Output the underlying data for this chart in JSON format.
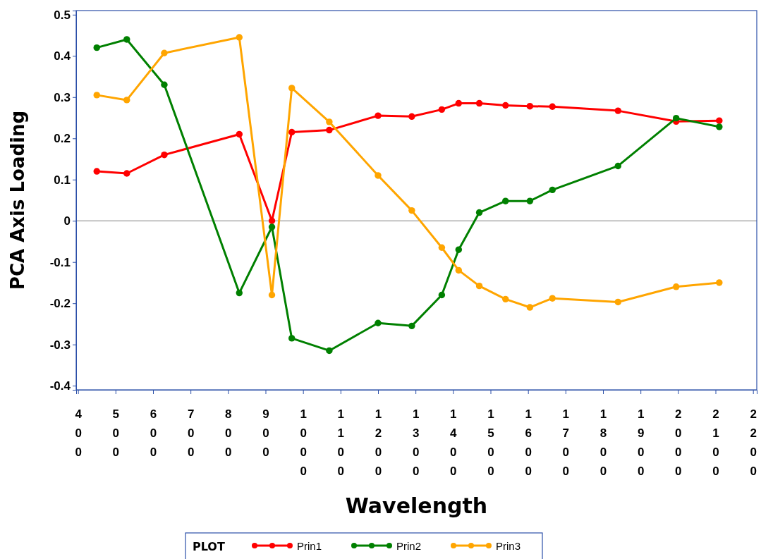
{
  "chart_data": {
    "type": "line",
    "xlabel": "Wavelength",
    "ylabel": "PCA Axis Loading",
    "legend_title": "PLOT",
    "legend": "bottom",
    "marker": "circle",
    "line_style": "solid",
    "grid": false,
    "x": [
      450,
      530,
      630,
      830,
      917,
      970,
      1070,
      1200,
      1290,
      1370,
      1415,
      1470,
      1540,
      1605,
      1665,
      1840,
      1995,
      2110
    ],
    "xlim": [
      395,
      2210
    ],
    "xticks": [
      400,
      500,
      600,
      700,
      800,
      900,
      1000,
      1100,
      1200,
      1300,
      1400,
      1500,
      1600,
      1700,
      1800,
      1900,
      2000,
      2100,
      2200
    ],
    "ylim": [
      -0.41,
      0.51
    ],
    "yticks": [
      -0.4,
      -0.3,
      -0.2,
      -0.1,
      0,
      0.1,
      0.2,
      0.3,
      0.4,
      0.5
    ],
    "ref_lines": [
      {
        "axis": "y",
        "value": 0,
        "color": "#808080"
      }
    ],
    "series": [
      {
        "name": "Prin1",
        "color": "#ff0000",
        "values": [
          0.12,
          0.115,
          0.16,
          0.21,
          0.0,
          0.215,
          0.22,
          0.255,
          0.253,
          0.27,
          0.285,
          0.285,
          0.28,
          0.278,
          0.277,
          0.267,
          0.241,
          0.243
        ]
      },
      {
        "name": "Prin2",
        "color": "#008000",
        "values": [
          0.42,
          0.44,
          0.33,
          -0.175,
          -0.015,
          -0.285,
          -0.315,
          -0.248,
          -0.255,
          -0.18,
          -0.07,
          0.02,
          0.048,
          0.048,
          0.075,
          0.133,
          0.249,
          0.228
        ]
      },
      {
        "name": "Prin3",
        "color": "#ffa500",
        "values": [
          0.305,
          0.293,
          0.407,
          0.445,
          -0.18,
          0.322,
          0.24,
          0.11,
          0.025,
          -0.065,
          -0.12,
          -0.158,
          -0.19,
          -0.21,
          -0.188,
          -0.197,
          -0.16,
          -0.15
        ]
      }
    ]
  }
}
